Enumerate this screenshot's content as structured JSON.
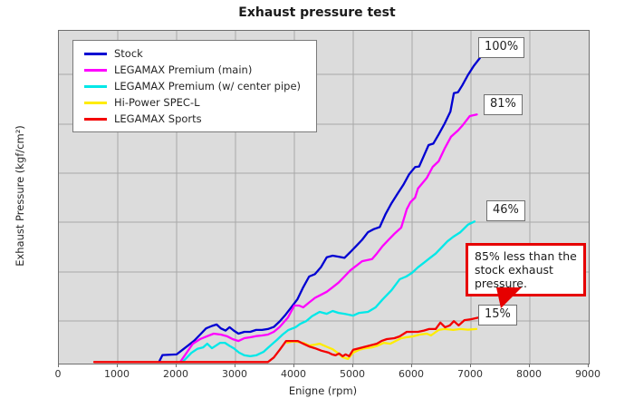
{
  "title": "Exhaust pressure test",
  "axes": {
    "x_label": "Enigne (rpm)",
    "y_label": "Exhaust Pressure (kgf/cm²)",
    "x_ticks": [
      "0",
      "1000",
      "2000",
      "3000",
      "4000",
      "5000",
      "6000",
      "7000",
      "8000",
      "9000"
    ]
  },
  "legend": {
    "items": [
      {
        "label": "Stock",
        "color": "#0000d2"
      },
      {
        "label": "LEGAMAX Premium (main)",
        "color": "#ff00ff"
      },
      {
        "label": "LEGAMAX Premium (w/ center pipe)",
        "color": "#00e8e8"
      },
      {
        "label": "Hi-Power SPEC-L",
        "color": "#ffec00"
      },
      {
        "label": "LEGAMAX Sports",
        "color": "#f40000"
      }
    ]
  },
  "annotations": {
    "stock_end": "100%",
    "premium_main_end": "81%",
    "premium_center_end": "46%",
    "sports_end": "15%",
    "callout_text": "85% less than the stock exhaust pressure."
  },
  "chart_data": {
    "type": "line",
    "title": "Exhaust pressure test",
    "xlabel": "Enigne (rpm)",
    "ylabel": "Exhaust Pressure (kgf/cm²)",
    "xlim": [
      0,
      9000
    ],
    "y_unit": "percent of stock peak pressure (no numeric y ticks shown)",
    "grid": true,
    "legend_position": "upper-left",
    "end_labels": {
      "Stock": 100,
      "LEGAMAX Premium (main)": 81,
      "LEGAMAX Premium (w/ center pipe)": 46,
      "LEGAMAX Sports": 15
    },
    "series": [
      {
        "name": "Stock",
        "color": "#0000d2",
        "points": [
          [
            1700,
            0.5
          ],
          [
            1760,
            2.8
          ],
          [
            2000,
            3
          ],
          [
            2100,
            4.5
          ],
          [
            2200,
            6
          ],
          [
            2300,
            7.5
          ],
          [
            2400,
            9.5
          ],
          [
            2500,
            11.5
          ],
          [
            2600,
            12.3
          ],
          [
            2680,
            12.8
          ],
          [
            2750,
            11.5
          ],
          [
            2830,
            10.8
          ],
          [
            2900,
            11.9
          ],
          [
            2970,
            10.8
          ],
          [
            3050,
            9.8
          ],
          [
            3150,
            10.4
          ],
          [
            3250,
            10.4
          ],
          [
            3350,
            11
          ],
          [
            3450,
            11
          ],
          [
            3550,
            11.3
          ],
          [
            3650,
            12
          ],
          [
            3750,
            13.8
          ],
          [
            3850,
            16
          ],
          [
            3950,
            18.5
          ],
          [
            4050,
            21
          ],
          [
            4150,
            25
          ],
          [
            4250,
            28.5
          ],
          [
            4350,
            29.3
          ],
          [
            4450,
            31.5
          ],
          [
            4550,
            34.8
          ],
          [
            4650,
            35.3
          ],
          [
            4750,
            35
          ],
          [
            4850,
            34.6
          ],
          [
            4950,
            36.5
          ],
          [
            5050,
            38.5
          ],
          [
            5150,
            40.5
          ],
          [
            5250,
            43
          ],
          [
            5350,
            44
          ],
          [
            5450,
            44.7
          ],
          [
            5550,
            49
          ],
          [
            5650,
            52.5
          ],
          [
            5750,
            55.5
          ],
          [
            5850,
            58.5
          ],
          [
            5950,
            62
          ],
          [
            6050,
            64.3
          ],
          [
            6120,
            64.5
          ],
          [
            6200,
            68
          ],
          [
            6280,
            71.5
          ],
          [
            6360,
            72
          ],
          [
            6450,
            75
          ],
          [
            6550,
            78.5
          ],
          [
            6650,
            82.5
          ],
          [
            6710,
            88.5
          ],
          [
            6780,
            88.8
          ],
          [
            6850,
            91
          ],
          [
            6950,
            94.5
          ],
          [
            7050,
            97.5
          ],
          [
            7150,
            100
          ]
        ]
      },
      {
        "name": "LEGAMAX Premium (main)",
        "color": "#ff00ff",
        "points": [
          [
            2060,
            0.5
          ],
          [
            2150,
            3
          ],
          [
            2275,
            6.5
          ],
          [
            2400,
            8
          ],
          [
            2500,
            8.8
          ],
          [
            2630,
            9.8
          ],
          [
            2750,
            9.5
          ],
          [
            2850,
            9
          ],
          [
            2950,
            8
          ],
          [
            3050,
            7.4
          ],
          [
            3150,
            8.3
          ],
          [
            3250,
            8.6
          ],
          [
            3350,
            9
          ],
          [
            3450,
            9.2
          ],
          [
            3550,
            9.5
          ],
          [
            3650,
            10.4
          ],
          [
            3750,
            12
          ],
          [
            3890,
            15
          ],
          [
            4000,
            19
          ],
          [
            4080,
            19
          ],
          [
            4150,
            18.4
          ],
          [
            4250,
            20
          ],
          [
            4350,
            21.5
          ],
          [
            4450,
            22.5
          ],
          [
            4550,
            23.5
          ],
          [
            4650,
            25
          ],
          [
            4750,
            26.5
          ],
          [
            4850,
            28.5
          ],
          [
            4950,
            30.5
          ],
          [
            5050,
            32
          ],
          [
            5150,
            33.5
          ],
          [
            5320,
            34.2
          ],
          [
            5400,
            36
          ],
          [
            5500,
            38.5
          ],
          [
            5600,
            40.5
          ],
          [
            5700,
            42.5
          ],
          [
            5815,
            44.5
          ],
          [
            5910,
            50.5
          ],
          [
            5970,
            52.8
          ],
          [
            6050,
            54.3
          ],
          [
            6100,
            57.3
          ],
          [
            6250,
            60.8
          ],
          [
            6350,
            64.4
          ],
          [
            6450,
            66.2
          ],
          [
            6550,
            70.3
          ],
          [
            6660,
            74.2
          ],
          [
            6780,
            76.3
          ],
          [
            6860,
            78
          ],
          [
            6980,
            81
          ],
          [
            7100,
            81.5
          ]
        ]
      },
      {
        "name": "LEGAMAX Premium (w/ center pipe)",
        "color": "#00e8e8",
        "points": [
          [
            2100,
            0.5
          ],
          [
            2250,
            3.5
          ],
          [
            2350,
            4.8
          ],
          [
            2450,
            5.3
          ],
          [
            2520,
            6.5
          ],
          [
            2600,
            5
          ],
          [
            2740,
            6.8
          ],
          [
            2820,
            6.8
          ],
          [
            2900,
            5.8
          ],
          [
            2970,
            5
          ],
          [
            3060,
            3.6
          ],
          [
            3150,
            2.7
          ],
          [
            3250,
            2.4
          ],
          [
            3350,
            2.7
          ],
          [
            3480,
            3.9
          ],
          [
            3600,
            6
          ],
          [
            3700,
            7.7
          ],
          [
            3800,
            9.5
          ],
          [
            3900,
            11
          ],
          [
            4020,
            11.9
          ],
          [
            4100,
            13
          ],
          [
            4200,
            13.9
          ],
          [
            4300,
            15.5
          ],
          [
            4430,
            16.9
          ],
          [
            4550,
            16.3
          ],
          [
            4650,
            17.2
          ],
          [
            4750,
            16.6
          ],
          [
            4850,
            16.3
          ],
          [
            5000,
            15.7
          ],
          [
            5100,
            16.6
          ],
          [
            5250,
            16.9
          ],
          [
            5380,
            18.4
          ],
          [
            5500,
            21
          ],
          [
            5650,
            24
          ],
          [
            5790,
            27.6
          ],
          [
            5900,
            28.5
          ],
          [
            6000,
            29.7
          ],
          [
            6100,
            31.5
          ],
          [
            6200,
            33
          ],
          [
            6300,
            34.5
          ],
          [
            6400,
            36
          ],
          [
            6500,
            38
          ],
          [
            6600,
            40
          ],
          [
            6700,
            41.5
          ],
          [
            6820,
            43
          ],
          [
            6950,
            45.5
          ],
          [
            7060,
            46.5
          ]
        ]
      },
      {
        "name": "Hi-Power SPEC-L",
        "color": "#ffec00",
        "points": [
          [
            3880,
            6.8
          ],
          [
            3960,
            7.2
          ],
          [
            4060,
            7.1
          ],
          [
            4150,
            6.8
          ],
          [
            4250,
            5.9
          ],
          [
            4350,
            6.2
          ],
          [
            4430,
            6.5
          ],
          [
            4550,
            5.5
          ],
          [
            4650,
            4.7
          ],
          [
            4750,
            3.3
          ],
          [
            4815,
            2.1
          ],
          [
            4910,
            1.5
          ],
          [
            5000,
            3.6
          ],
          [
            5100,
            4.5
          ],
          [
            5200,
            5
          ],
          [
            5320,
            5.3
          ],
          [
            5420,
            5.9
          ],
          [
            5520,
            6.8
          ],
          [
            5630,
            6.5
          ],
          [
            5720,
            7.4
          ],
          [
            5815,
            8.3
          ],
          [
            5900,
            8.6
          ],
          [
            6015,
            8.9
          ],
          [
            6130,
            9.5
          ],
          [
            6250,
            9.8
          ],
          [
            6320,
            9.2
          ],
          [
            6450,
            11
          ],
          [
            6550,
            11.3
          ],
          [
            6700,
            11
          ],
          [
            6820,
            11.3
          ],
          [
            6950,
            11.1
          ],
          [
            7090,
            11.3
          ]
        ]
      },
      {
        "name": "LEGAMAX Sports",
        "color": "#f40000",
        "points": [
          [
            600,
            0.5
          ],
          [
            3550,
            0.5
          ],
          [
            3650,
            2
          ],
          [
            3750,
            4.5
          ],
          [
            3860,
            7.4
          ],
          [
            4060,
            7.4
          ],
          [
            4150,
            6.5
          ],
          [
            4250,
            5.6
          ],
          [
            4350,
            5
          ],
          [
            4460,
            4.2
          ],
          [
            4580,
            3.6
          ],
          [
            4640,
            3
          ],
          [
            4700,
            2.7
          ],
          [
            4760,
            3.3
          ],
          [
            4820,
            2.4
          ],
          [
            4870,
            3
          ],
          [
            4930,
            2.4
          ],
          [
            5000,
            4.5
          ],
          [
            5100,
            5
          ],
          [
            5280,
            5.9
          ],
          [
            5400,
            6.5
          ],
          [
            5480,
            7.4
          ],
          [
            5570,
            8
          ],
          [
            5700,
            8.3
          ],
          [
            5790,
            8.9
          ],
          [
            5910,
            10.4
          ],
          [
            6100,
            10.4
          ],
          [
            6200,
            10.8
          ],
          [
            6290,
            11.3
          ],
          [
            6400,
            11.3
          ],
          [
            6480,
            13.4
          ],
          [
            6560,
            11.9
          ],
          [
            6640,
            12.5
          ],
          [
            6710,
            13.9
          ],
          [
            6790,
            12.5
          ],
          [
            6890,
            14.2
          ],
          [
            7000,
            14.5
          ],
          [
            7120,
            15
          ]
        ]
      }
    ]
  }
}
